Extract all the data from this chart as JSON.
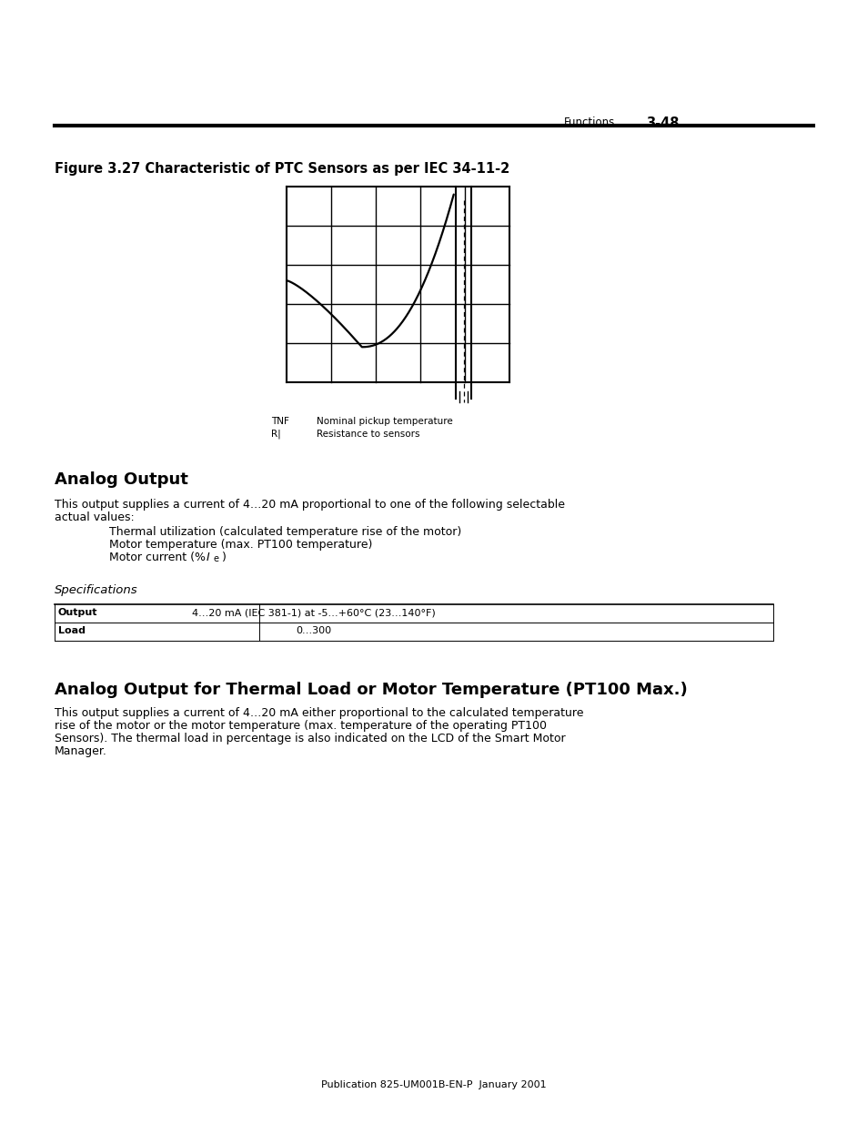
{
  "page_header_left": "Functions",
  "page_header_right": "3-48",
  "figure_title": "Figure 3.27 Characteristic of PTC Sensors as per IEC 34-11-2",
  "legend_tnf": "TNF",
  "legend_tnf_desc": "Nominal pickup temperature",
  "legend_r": "R|",
  "legend_r_desc": "Resistance to sensors",
  "section1_title": "Analog Output",
  "section1_body1": "This output supplies a current of 4…20 mA proportional to one of the following selectable",
  "section1_body2": "actual values:",
  "section1_bullets": [
    "Thermal utilization (calculated temperature rise of the motor)",
    "Motor temperature (max. PT100 temperature)",
    "Motor current (% I₀)"
  ],
  "spec_heading": "Specifications",
  "table_col1_header": "Output",
  "table_col2_header": "Load",
  "table_col1_val1": "4…20 mA (IEC 381-1) at -5…+60°C (23…140°F)",
  "table_col1_val2": "0…300",
  "section2_title": "Analog Output for Thermal Load or Motor Temperature (PT100 Max.)",
  "section2_body": [
    "This output supplies a current of 4…20 mA either proportional to the calculated temperature",
    "rise of the motor or the motor temperature (max. temperature of the operating PT100",
    "Sensors). The thermal load in percentage is also indicated on the LCD of the Smart Motor",
    "Manager."
  ],
  "footer": "Publication 825-UM001B-EN-P  January 2001",
  "bg_color": "#ffffff",
  "text_color": "#000000"
}
